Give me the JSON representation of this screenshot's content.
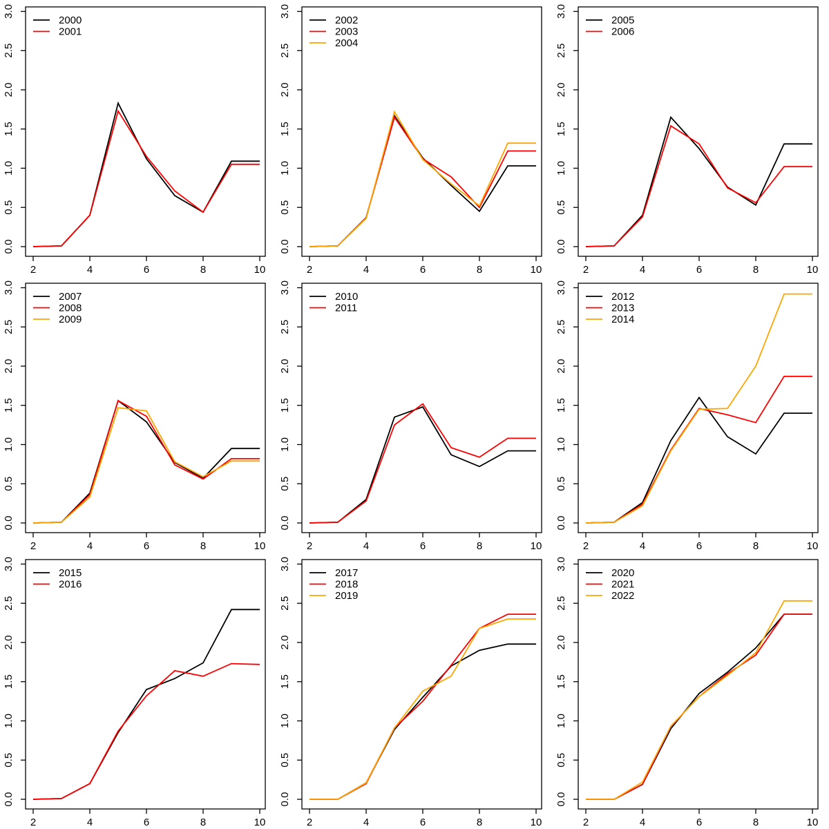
{
  "page": {
    "background": "#ffffff",
    "grid_rows": 3,
    "grid_cols": 3
  },
  "colors": {
    "axis": "#000000",
    "series_order": [
      "#000000",
      "#FF0000",
      "#FFA500"
    ]
  },
  "chart_data": [
    {
      "type": "line",
      "x": [
        2,
        3,
        4,
        5,
        6,
        7,
        8,
        9,
        10
      ],
      "xlim": [
        2,
        10
      ],
      "ylim": [
        0,
        3
      ],
      "x_tick_labels": [
        "2",
        "4",
        "6",
        "8",
        "10"
      ],
      "x_ticks": [
        2,
        4,
        6,
        8,
        10
      ],
      "y_ticks": [
        0,
        0.5,
        1,
        1.5,
        2,
        2.5,
        3
      ],
      "y_tick_labels": [
        "0.0",
        "0.5",
        "1.0",
        "1.5",
        "2.0",
        "2.5",
        "3.0"
      ],
      "title": "",
      "xlabel": "",
      "ylabel": "",
      "grid": false,
      "legend_position": "top-left",
      "series": [
        {
          "name": "2000",
          "color": "#000000",
          "values": [
            0.0,
            0.01,
            0.4,
            1.83,
            1.12,
            0.65,
            0.44,
            1.09,
            1.09
          ]
        },
        {
          "name": "2001",
          "color": "#FF0000",
          "values": [
            0.0,
            0.01,
            0.4,
            1.73,
            1.15,
            0.71,
            0.44,
            1.05,
            1.05
          ]
        }
      ]
    },
    {
      "type": "line",
      "x": [
        2,
        3,
        4,
        5,
        6,
        7,
        8,
        9,
        10
      ],
      "xlim": [
        2,
        10
      ],
      "ylim": [
        0,
        3
      ],
      "x_tick_labels": [
        "2",
        "4",
        "6",
        "8",
        "10"
      ],
      "x_ticks": [
        2,
        4,
        6,
        8,
        10
      ],
      "y_ticks": [
        0,
        0.5,
        1,
        1.5,
        2,
        2.5,
        3
      ],
      "y_tick_labels": [
        "0.0",
        "0.5",
        "1.0",
        "1.5",
        "2.0",
        "2.5",
        "3.0"
      ],
      "title": "",
      "xlabel": "",
      "ylabel": "",
      "grid": false,
      "legend_position": "top-left",
      "series": [
        {
          "name": "2002",
          "color": "#000000",
          "values": [
            0.0,
            0.01,
            0.37,
            1.67,
            1.13,
            0.78,
            0.45,
            1.03,
            1.03
          ]
        },
        {
          "name": "2003",
          "color": "#FF0000",
          "values": [
            0.0,
            0.01,
            0.37,
            1.65,
            1.12,
            0.89,
            0.5,
            1.22,
            1.22
          ]
        },
        {
          "name": "2004",
          "color": "#FFA500",
          "values": [
            0.0,
            0.01,
            0.36,
            1.72,
            1.11,
            0.8,
            0.52,
            1.32,
            1.32
          ]
        }
      ]
    },
    {
      "type": "line",
      "x": [
        2,
        3,
        4,
        5,
        6,
        7,
        8,
        9,
        10
      ],
      "xlim": [
        2,
        10
      ],
      "ylim": [
        0,
        3
      ],
      "x_tick_labels": [
        "2",
        "4",
        "6",
        "8",
        "10"
      ],
      "x_ticks": [
        2,
        4,
        6,
        8,
        10
      ],
      "y_ticks": [
        0,
        0.5,
        1,
        1.5,
        2,
        2.5,
        3
      ],
      "y_tick_labels": [
        "0.0",
        "0.5",
        "1.0",
        "1.5",
        "2.0",
        "2.5",
        "3.0"
      ],
      "title": "",
      "xlabel": "",
      "ylabel": "",
      "grid": false,
      "legend_position": "top-left",
      "series": [
        {
          "name": "2005",
          "color": "#000000",
          "values": [
            0.0,
            0.01,
            0.4,
            1.65,
            1.25,
            0.76,
            0.53,
            1.31,
            1.31
          ]
        },
        {
          "name": "2006",
          "color": "#FF0000",
          "values": [
            0.0,
            0.01,
            0.38,
            1.54,
            1.31,
            0.75,
            0.56,
            1.02,
            1.02
          ]
        }
      ]
    },
    {
      "type": "line",
      "x": [
        2,
        3,
        4,
        5,
        6,
        7,
        8,
        9,
        10
      ],
      "xlim": [
        2,
        10
      ],
      "ylim": [
        0,
        3
      ],
      "x_tick_labels": [
        "2",
        "4",
        "6",
        "8",
        "10"
      ],
      "x_ticks": [
        2,
        4,
        6,
        8,
        10
      ],
      "y_ticks": [
        0,
        0.5,
        1,
        1.5,
        2,
        2.5,
        3
      ],
      "y_tick_labels": [
        "0.0",
        "0.5",
        "1.0",
        "1.5",
        "2.0",
        "2.5",
        "3.0"
      ],
      "title": "",
      "xlabel": "",
      "ylabel": "",
      "grid": false,
      "legend_position": "top-left",
      "series": [
        {
          "name": "2007",
          "color": "#000000",
          "values": [
            0.0,
            0.01,
            0.38,
            1.56,
            1.29,
            0.77,
            0.57,
            0.95,
            0.95
          ]
        },
        {
          "name": "2008",
          "color": "#FF0000",
          "values": [
            0.0,
            0.01,
            0.36,
            1.56,
            1.36,
            0.74,
            0.56,
            0.82,
            0.82
          ]
        },
        {
          "name": "2009",
          "color": "#FFA500",
          "values": [
            0.0,
            0.01,
            0.33,
            1.47,
            1.43,
            0.78,
            0.59,
            0.79,
            0.79
          ]
        }
      ]
    },
    {
      "type": "line",
      "x": [
        2,
        3,
        4,
        5,
        6,
        7,
        8,
        9,
        10
      ],
      "xlim": [
        2,
        10
      ],
      "ylim": [
        0,
        3
      ],
      "x_tick_labels": [
        "2",
        "4",
        "6",
        "8",
        "10"
      ],
      "x_ticks": [
        2,
        4,
        6,
        8,
        10
      ],
      "y_ticks": [
        0,
        0.5,
        1,
        1.5,
        2,
        2.5,
        3
      ],
      "y_tick_labels": [
        "0.0",
        "0.5",
        "1.0",
        "1.5",
        "2.0",
        "2.5",
        "3.0"
      ],
      "title": "",
      "xlabel": "",
      "ylabel": "",
      "grid": false,
      "legend_position": "top-left",
      "series": [
        {
          "name": "2010",
          "color": "#000000",
          "values": [
            0.0,
            0.01,
            0.3,
            1.35,
            1.48,
            0.87,
            0.72,
            0.92,
            0.92
          ]
        },
        {
          "name": "2011",
          "color": "#FF0000",
          "values": [
            0.0,
            0.01,
            0.28,
            1.25,
            1.52,
            0.96,
            0.84,
            1.08,
            1.08
          ]
        }
      ]
    },
    {
      "type": "line",
      "x": [
        2,
        3,
        4,
        5,
        6,
        7,
        8,
        9,
        10
      ],
      "xlim": [
        2,
        10
      ],
      "ylim": [
        0,
        3
      ],
      "x_tick_labels": [
        "2",
        "4",
        "6",
        "8",
        "10"
      ],
      "x_ticks": [
        2,
        4,
        6,
        8,
        10
      ],
      "y_ticks": [
        0,
        0.5,
        1,
        1.5,
        2,
        2.5,
        3
      ],
      "y_tick_labels": [
        "0.0",
        "0.5",
        "1.0",
        "1.5",
        "2.0",
        "2.5",
        "3.0"
      ],
      "title": "",
      "xlabel": "",
      "ylabel": "",
      "grid": false,
      "legend_position": "top-left",
      "series": [
        {
          "name": "2012",
          "color": "#000000",
          "values": [
            0.0,
            0.01,
            0.26,
            1.05,
            1.6,
            1.1,
            0.88,
            1.4,
            1.4
          ]
        },
        {
          "name": "2013",
          "color": "#FF0000",
          "values": [
            0.0,
            0.01,
            0.24,
            0.93,
            1.46,
            1.38,
            1.28,
            1.87,
            1.87
          ]
        },
        {
          "name": "2014",
          "color": "#FFA500",
          "values": [
            0.0,
            0.01,
            0.22,
            0.92,
            1.45,
            1.46,
            2.0,
            2.92,
            2.92
          ]
        }
      ]
    },
    {
      "type": "line",
      "x": [
        2,
        3,
        4,
        5,
        6,
        7,
        8,
        9,
        10
      ],
      "xlim": [
        2,
        10
      ],
      "ylim": [
        0,
        3
      ],
      "x_tick_labels": [
        "2",
        "4",
        "6",
        "8",
        "10"
      ],
      "x_ticks": [
        2,
        4,
        6,
        8,
        10
      ],
      "y_ticks": [
        0,
        0.5,
        1,
        1.5,
        2,
        2.5,
        3
      ],
      "y_tick_labels": [
        "0.0",
        "0.5",
        "1.0",
        "1.5",
        "2.0",
        "2.5",
        "3.0"
      ],
      "title": "",
      "xlabel": "",
      "ylabel": "",
      "grid": false,
      "legend_position": "top-left",
      "series": [
        {
          "name": "2015",
          "color": "#000000",
          "values": [
            0.0,
            0.01,
            0.2,
            0.85,
            1.4,
            1.54,
            1.74,
            2.42,
            2.42
          ]
        },
        {
          "name": "2016",
          "color": "#FF0000",
          "values": [
            0.0,
            0.01,
            0.2,
            0.87,
            1.32,
            1.64,
            1.57,
            1.73,
            1.72
          ]
        }
      ]
    },
    {
      "type": "line",
      "x": [
        2,
        3,
        4,
        5,
        6,
        7,
        8,
        9,
        10
      ],
      "xlim": [
        2,
        10
      ],
      "ylim": [
        0,
        3
      ],
      "x_tick_labels": [
        "2",
        "4",
        "6",
        "8",
        "10"
      ],
      "x_ticks": [
        2,
        4,
        6,
        8,
        10
      ],
      "y_ticks": [
        0,
        0.5,
        1,
        1.5,
        2,
        2.5,
        3
      ],
      "y_tick_labels": [
        "0.0",
        "0.5",
        "1.0",
        "1.5",
        "2.0",
        "2.5",
        "3.0"
      ],
      "title": "",
      "xlabel": "",
      "ylabel": "",
      "grid": false,
      "legend_position": "top-left",
      "series": [
        {
          "name": "2017",
          "color": "#000000",
          "values": [
            0.0,
            0.0,
            0.21,
            0.89,
            1.3,
            1.7,
            1.9,
            1.98,
            1.98
          ]
        },
        {
          "name": "2018",
          "color": "#FF0000",
          "values": [
            0.0,
            0.0,
            0.2,
            0.91,
            1.25,
            1.71,
            2.18,
            2.36,
            2.36
          ]
        },
        {
          "name": "2019",
          "color": "#FFA500",
          "values": [
            0.0,
            0.0,
            0.21,
            0.91,
            1.38,
            1.57,
            2.18,
            2.3,
            2.3
          ]
        }
      ]
    },
    {
      "type": "line",
      "x": [
        2,
        3,
        4,
        5,
        6,
        7,
        8,
        9,
        10
      ],
      "xlim": [
        2,
        10
      ],
      "ylim": [
        0,
        3
      ],
      "x_tick_labels": [
        "2",
        "4",
        "6",
        "8",
        "10"
      ],
      "x_ticks": [
        2,
        4,
        6,
        8,
        10
      ],
      "y_ticks": [
        0,
        0.5,
        1,
        1.5,
        2,
        2.5,
        3
      ],
      "y_tick_labels": [
        "0.0",
        "0.5",
        "1.0",
        "1.5",
        "2.0",
        "2.5",
        "3.0"
      ],
      "title": "",
      "xlabel": "",
      "ylabel": "",
      "grid": false,
      "legend_position": "top-left",
      "series": [
        {
          "name": "2020",
          "color": "#000000",
          "values": [
            0.0,
            0.0,
            0.19,
            0.9,
            1.35,
            1.62,
            1.93,
            2.36,
            2.36
          ]
        },
        {
          "name": "2021",
          "color": "#FF0000",
          "values": [
            0.0,
            0.0,
            0.19,
            0.93,
            1.31,
            1.6,
            1.84,
            2.36,
            2.36
          ]
        },
        {
          "name": "2022",
          "color": "#FFA500",
          "values": [
            0.0,
            0.0,
            0.22,
            0.93,
            1.31,
            1.58,
            1.87,
            2.53,
            2.53
          ]
        }
      ]
    }
  ]
}
